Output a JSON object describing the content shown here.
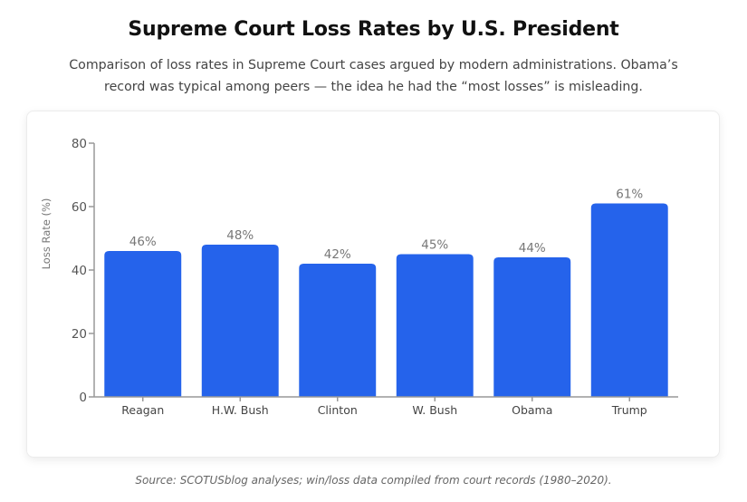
{
  "header": {
    "title": "Supreme Court Loss Rates by U.S. President",
    "subtitle": "Comparison of loss rates in Supreme Court cases argued by modern administrations. Obama’s record was typical among peers — the idea he had the “most losses” is misleading."
  },
  "footer": {
    "source": "Source: SCOTUSblog analyses; win/loss data compiled from court records (1980–2020)."
  },
  "chart_data": {
    "type": "bar",
    "title": "Supreme Court Loss Rates by U.S. President",
    "xlabel": "",
    "ylabel": "Loss Rate (%)",
    "categories": [
      "Reagan",
      "H.W. Bush",
      "Clinton",
      "W. Bush",
      "Obama",
      "Trump"
    ],
    "values": [
      46,
      48,
      42,
      45,
      44,
      61
    ],
    "value_labels": [
      "46%",
      "48%",
      "42%",
      "45%",
      "44%",
      "61%"
    ],
    "ylim": [
      0,
      80
    ],
    "yticks": [
      0,
      20,
      40,
      60,
      80
    ],
    "grid": false,
    "legend": "none",
    "bar_color": "#2563eb",
    "axis_color": "#999999"
  }
}
